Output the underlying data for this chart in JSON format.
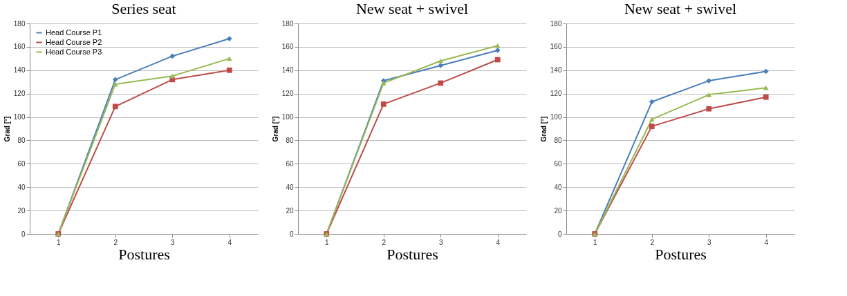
{
  "chart_data": [
    {
      "type": "line",
      "title": "Series seat",
      "xlabel": "Postures",
      "ylabel": "Grad [°]",
      "categories": [
        "1",
        "2",
        "3",
        "4"
      ],
      "ylim": [
        0,
        180
      ],
      "yticks": [
        0,
        20,
        40,
        60,
        80,
        100,
        120,
        140,
        160,
        180
      ],
      "grid": "y",
      "legend": "top left",
      "series": [
        {
          "name": "Head Course P1",
          "color": "#4a7ebb",
          "marker": "diamond",
          "values": [
            0,
            132,
            152,
            167
          ]
        },
        {
          "name": "Head Course P2",
          "color": "#be4b48",
          "marker": "square",
          "values": [
            0,
            109,
            132,
            140
          ]
        },
        {
          "name": "Head Course P3",
          "color": "#98b954",
          "marker": "triangle",
          "values": [
            0,
            128,
            135,
            150
          ]
        }
      ]
    },
    {
      "type": "line",
      "title": "New seat + swivel",
      "xlabel": "Postures",
      "ylabel": "Grad [°]",
      "categories": [
        "1",
        "2",
        "3",
        "4"
      ],
      "ylim": [
        0,
        180
      ],
      "yticks": [
        0,
        20,
        40,
        60,
        80,
        100,
        120,
        140,
        160,
        180
      ],
      "grid": "y",
      "series": [
        {
          "color": "#4a7ebb",
          "marker": "diamond",
          "values": [
            0,
            131,
            144,
            157
          ]
        },
        {
          "color": "#be4b48",
          "marker": "square",
          "values": [
            0,
            111,
            129,
            149
          ]
        },
        {
          "color": "#98b954",
          "marker": "triangle",
          "values": [
            0,
            129,
            148,
            161
          ]
        }
      ]
    },
    {
      "type": "line",
      "title": "New seat + swivel",
      "xlabel": "Postures",
      "ylabel": "Grad [°]",
      "categories": [
        "1",
        "2",
        "3",
        "4"
      ],
      "ylim": [
        0,
        180
      ],
      "yticks": [
        0,
        20,
        40,
        60,
        80,
        100,
        120,
        140,
        160,
        180
      ],
      "grid": "y",
      "series": [
        {
          "color": "#4a7ebb",
          "marker": "diamond",
          "values": [
            0,
            113,
            131,
            139
          ]
        },
        {
          "color": "#be4b48",
          "marker": "square",
          "values": [
            0,
            92,
            107,
            117
          ]
        },
        {
          "color": "#98b954",
          "marker": "triangle",
          "values": [
            0,
            98,
            119,
            125
          ]
        }
      ]
    }
  ]
}
